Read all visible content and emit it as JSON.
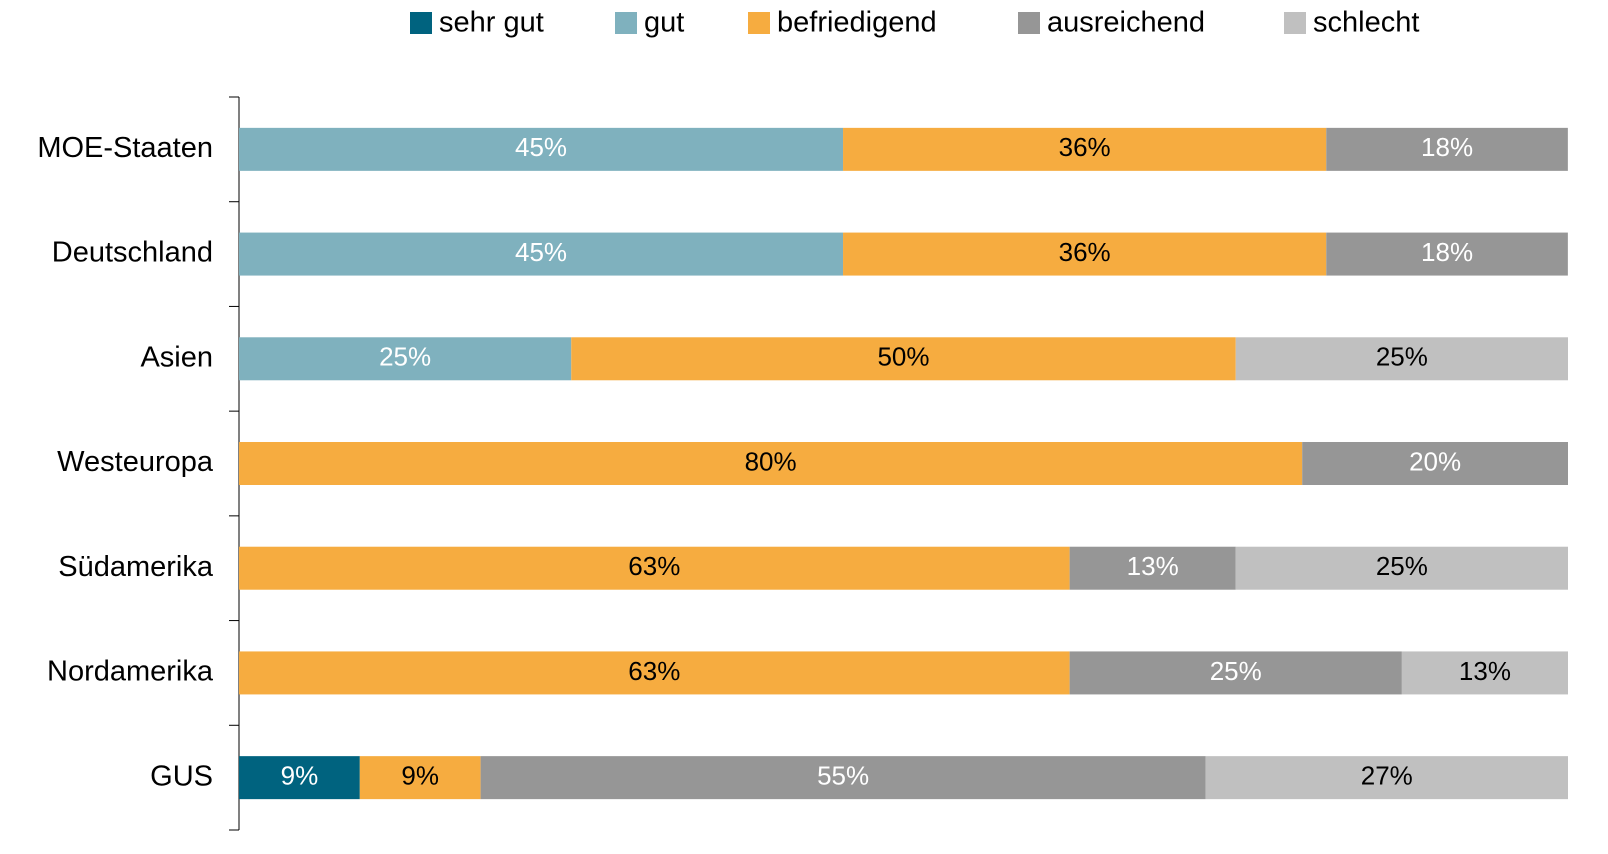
{
  "chart_data": {
    "type": "stacked_bar_horizontal",
    "categories": [
      "MOE-Staaten",
      "Deutschland",
      "Asien",
      "Westeuropa",
      "Südamerika",
      "Nordamerika",
      "GUS"
    ],
    "xlim": [
      0,
      100
    ],
    "legend": "top",
    "series": [
      {
        "name": "sehr gut",
        "color": "#00637f",
        "label_color": "#ffffff",
        "values": [
          null,
          null,
          null,
          null,
          null,
          null,
          9.09
        ],
        "value_labels": [
          null,
          null,
          null,
          null,
          null,
          null,
          "9%"
        ]
      },
      {
        "name": "gut",
        "color": "#7fb1be",
        "label_color": "#ffffff",
        "values": [
          45.45,
          45.45,
          25,
          null,
          null,
          null,
          null
        ],
        "value_labels": [
          "45%",
          "45%",
          "25%",
          null,
          null,
          null,
          null
        ]
      },
      {
        "name": "befriedigend",
        "color": "#f6ac40",
        "label_color": "#000000",
        "values": [
          36.36,
          36.36,
          50,
          80,
          62.5,
          62.5,
          9.09
        ],
        "value_labels": [
          "36%",
          "36%",
          "50%",
          "80%",
          "63%",
          "63%",
          "9%"
        ]
      },
      {
        "name": "ausreichend",
        "color": "#969696",
        "label_color": "#ffffff",
        "values": [
          18.18,
          18.18,
          null,
          20,
          12.5,
          25,
          54.55
        ],
        "value_labels": [
          "18%",
          "18%",
          null,
          "20%",
          "13%",
          "25%",
          "55%"
        ]
      },
      {
        "name": "schlecht",
        "color": "#c0c0c0",
        "label_color": "#000000",
        "values": [
          null,
          null,
          25,
          null,
          25,
          12.5,
          27.27
        ],
        "value_labels": [
          null,
          null,
          "25%",
          null,
          "25%",
          "13%",
          "27%"
        ]
      }
    ]
  }
}
